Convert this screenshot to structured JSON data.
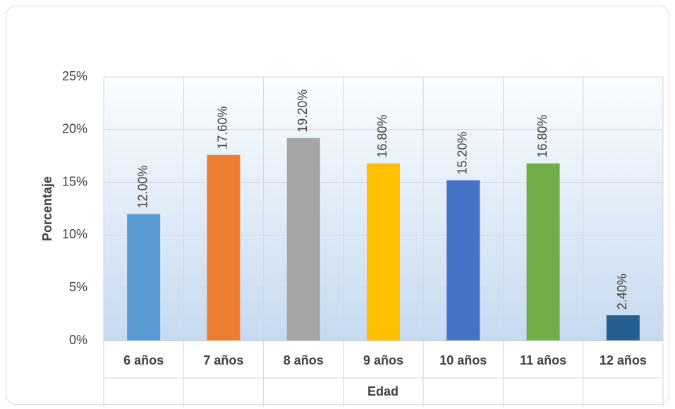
{
  "chart_data": {
    "type": "bar",
    "title": "",
    "xlabel": "Edad",
    "ylabel": "Porcentaje",
    "categories": [
      "6 años",
      "7 años",
      "8 años",
      "9 años",
      "10 años",
      "11 años",
      "12 años"
    ],
    "values": [
      12.0,
      17.6,
      19.2,
      16.8,
      15.2,
      16.8,
      2.4
    ],
    "data_labels": [
      "12.00%",
      "17.60%",
      "19.20%",
      "16.80%",
      "15.20%",
      "16.80%",
      "2.40%"
    ],
    "colors": [
      "#5B9BD5",
      "#ED7D31",
      "#A5A5A5",
      "#FFC000",
      "#4472C4",
      "#70AD47",
      "#255E91"
    ],
    "ylim": [
      0,
      25
    ],
    "yticks": [
      "0%",
      "5%",
      "10%",
      "15%",
      "20%",
      "25%"
    ],
    "grid": true,
    "legend": "none"
  }
}
